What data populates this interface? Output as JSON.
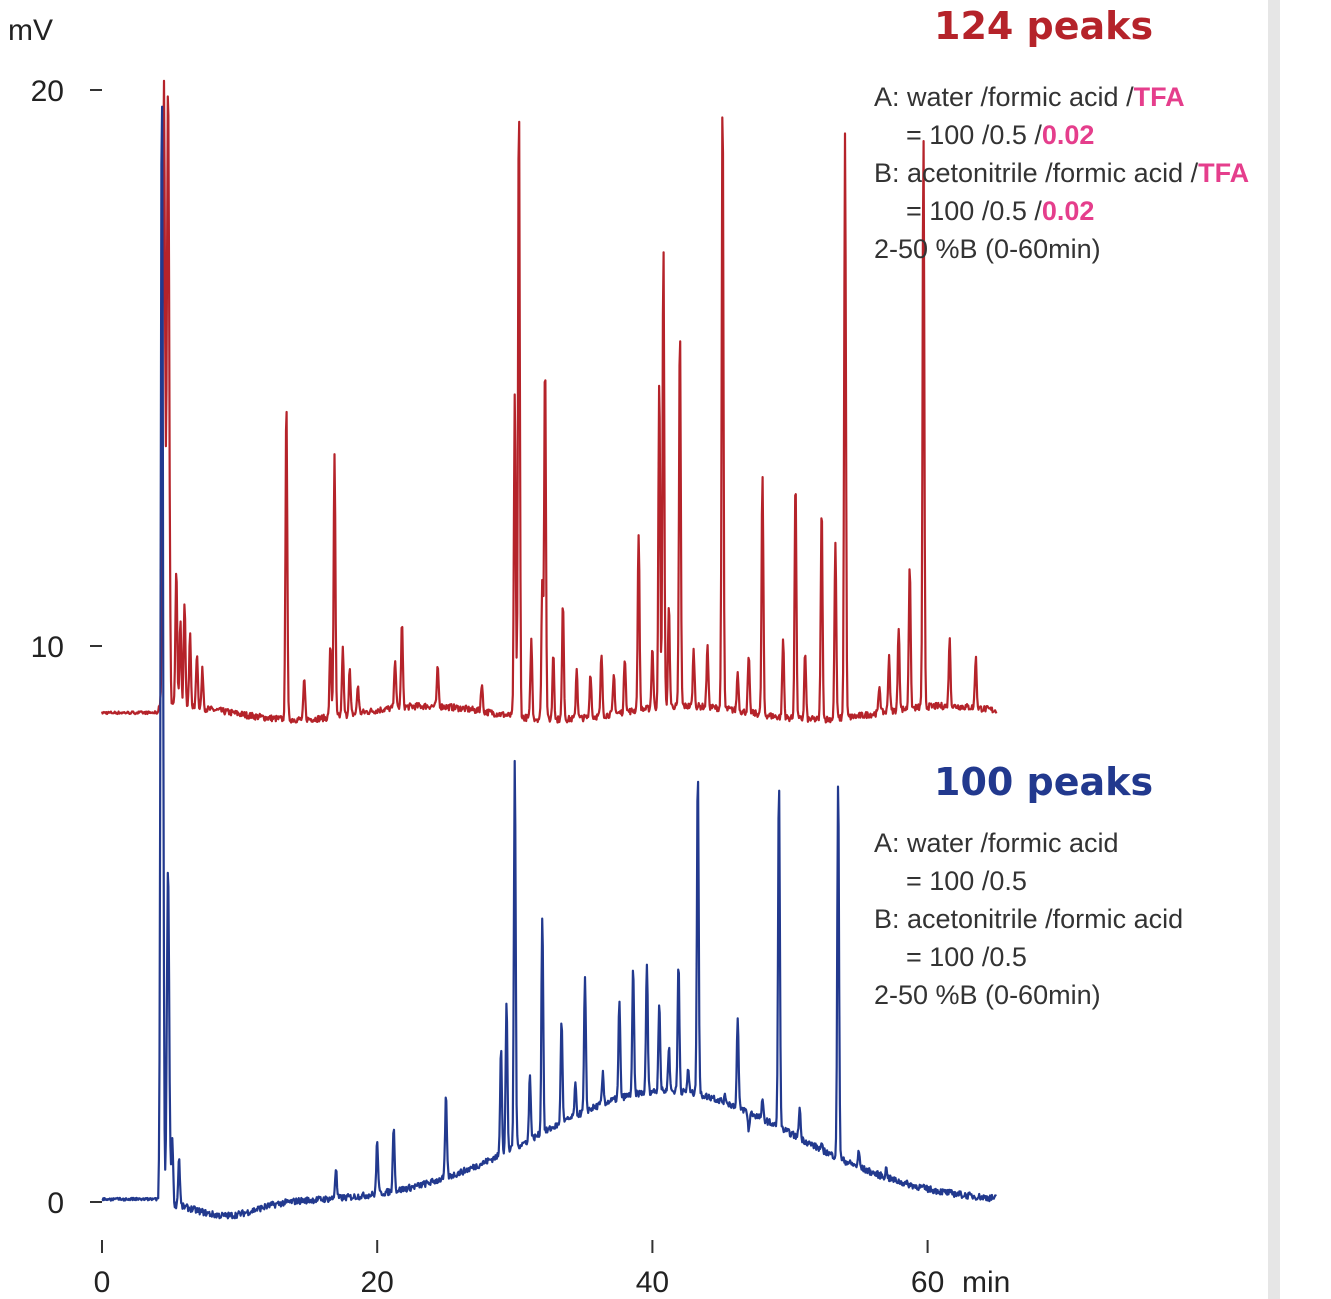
{
  "chart_data": {
    "type": "line",
    "ylabel": "mV",
    "xlabel": "min",
    "xlim": [
      0,
      65
    ],
    "ylim": [
      0,
      20
    ],
    "x_ticks": [
      0,
      20,
      40,
      60
    ],
    "y_ticks": [
      0,
      10,
      20
    ],
    "grid": false,
    "series": [
      {
        "name": "124 peaks",
        "color": "#b5232a",
        "baseline": 8.8,
        "x": [
          0,
          4.2,
          4.5,
          4.8,
          5.4,
          5.7,
          6.0,
          6.4,
          6.9,
          7.3,
          8.2,
          9.3,
          13.4,
          14.7,
          16.6,
          16.9,
          17.5,
          18.0,
          18.6,
          19.8,
          21.3,
          21.8,
          23.3,
          24.4,
          27.6,
          30.0,
          30.3,
          31.2,
          32.0,
          32.2,
          32.8,
          33.5,
          34.5,
          35.5,
          36.3,
          37.2,
          38.0,
          39.0,
          40.0,
          40.5,
          40.8,
          41.2,
          42.0,
          43.0,
          44.0,
          45.1,
          46.2,
          47.0,
          48.0,
          49.5,
          50.4,
          51.1,
          52.3,
          53.3,
          54.0,
          56.5,
          57.2,
          57.9,
          58.7,
          59.7,
          61.6,
          63.5,
          64.0,
          65.0
        ],
        "y": [
          8.8,
          8.9,
          20.0,
          20.0,
          11.3,
          10.4,
          10.7,
          10.1,
          9.8,
          9.5,
          9.2,
          9.0,
          14.6,
          9.5,
          10.1,
          13.5,
          10.0,
          9.6,
          9.3,
          9.1,
          9.7,
          10.3,
          9.2,
          9.5,
          9.3,
          14.6,
          19.9,
          10.2,
          11.3,
          15.3,
          10.0,
          10.9,
          9.7,
          9.6,
          9.9,
          9.5,
          9.8,
          12.0,
          9.9,
          14.7,
          17.1,
          10.6,
          15.6,
          9.8,
          9.9,
          19.8,
          9.5,
          9.8,
          13.1,
          10.2,
          13.1,
          10.0,
          12.6,
          12.0,
          19.3,
          9.3,
          9.8,
          10.3,
          11.4,
          19.0,
          10.0,
          9.7,
          9.0,
          8.6
        ]
      },
      {
        "name": "100 peaks",
        "color": "#22398e",
        "baseline": 0.0,
        "x": [
          0,
          4.1,
          4.35,
          4.8,
          5.1,
          5.6,
          6.0,
          6.7,
          8.0,
          10.0,
          11.4,
          12.0,
          14.5,
          15.2,
          17.0,
          20.0,
          21.2,
          25.0,
          29.0,
          29.4,
          30.0,
          31.1,
          32.0,
          33.4,
          34.4,
          35.1,
          36.4,
          37.6,
          38.6,
          39.6,
          40.5,
          41.2,
          41.9,
          42.6,
          43.3,
          44.4,
          45.3,
          46.2,
          47.0,
          48.0,
          49.2,
          50.7,
          52.3,
          53.5,
          55.0,
          57.0,
          60.0,
          63.0,
          65.0
        ],
        "y": [
          0.1,
          0.1,
          20.0,
          6.0,
          1.2,
          0.8,
          0.3,
          -0.1,
          -0.2,
          -0.2,
          0.0,
          0.4,
          0.1,
          0.3,
          0.6,
          1.1,
          1.4,
          1.9,
          2.8,
          3.6,
          8.0,
          2.3,
          5.2,
          3.3,
          2.1,
          4.0,
          2.3,
          3.6,
          4.2,
          4.3,
          3.6,
          2.8,
          4.3,
          2.4,
          7.8,
          1.9,
          1.9,
          3.3,
          1.3,
          1.8,
          7.6,
          1.7,
          1.0,
          7.6,
          0.9,
          0.6,
          0.3,
          0.2,
          0.0
        ]
      }
    ]
  },
  "legend_top": {
    "title": "124 peaks",
    "line1_prefix": "A: water /formic acid /",
    "line1_hl": "TFA",
    "line2_prefix": "= 100 /0.5 /",
    "line2_hl": "0.02",
    "line3_prefix": "B: acetonitrile /formic acid /",
    "line3_hl": "TFA",
    "line4_prefix": "= 100 /0.5 /",
    "line4_hl": "0.02",
    "line5": "2-50 %B (0-60min)"
  },
  "legend_bottom": {
    "title": "100 peaks",
    "line1": "A: water /formic acid",
    "line2": "= 100 /0.5",
    "line3": "B: acetonitrile /formic acid",
    "line4": "= 100 /0.5",
    "line5": "2-50 %B (0-60min)"
  }
}
